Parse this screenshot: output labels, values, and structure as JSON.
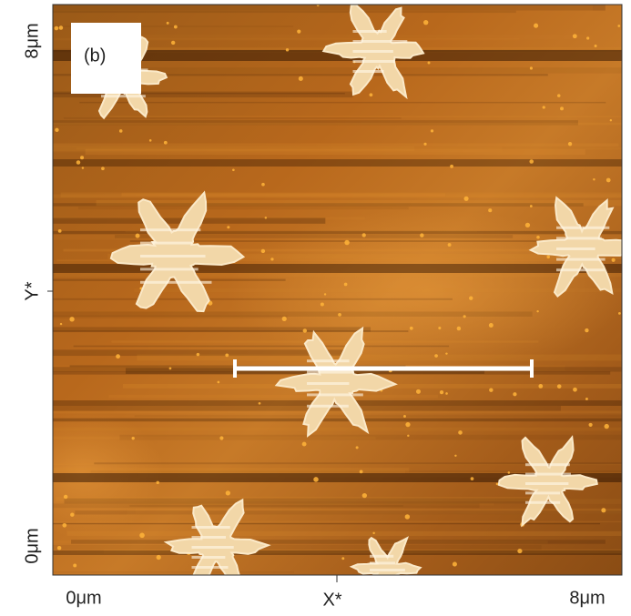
{
  "panel_label": "(b)",
  "y_axis": {
    "title": "Y*",
    "ticks": [
      "0μm",
      "8μm"
    ]
  },
  "x_axis": {
    "title": "X*",
    "ticks": [
      "0μm",
      "8μm"
    ]
  }
}
